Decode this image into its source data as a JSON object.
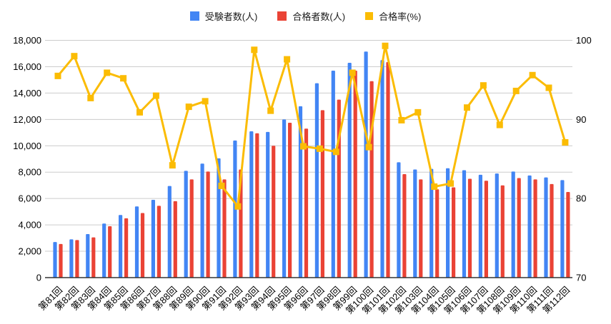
{
  "chart_data": {
    "type": "combo",
    "title": "",
    "grid": true,
    "legend_position": "top",
    "categories": [
      "第81回",
      "第82回",
      "第83回",
      "第84回",
      "第85回",
      "第86回",
      "第87回",
      "第88回",
      "第89回",
      "第90回",
      "第91回",
      "第92回",
      "第93回",
      "第94回",
      "第95回",
      "第96回",
      "第97回",
      "第98回",
      "第99回",
      "第100回",
      "第101回",
      "第102回",
      "第103回",
      "第104回",
      "第105回",
      "第106回",
      "第107回",
      "第108回",
      "第109回",
      "第110回",
      "第111回",
      "第112回"
    ],
    "series": [
      {
        "name": "受験者数(人)",
        "type": "bar",
        "axis": "left",
        "color": "#4285F4",
        "values": [
          2700,
          2900,
          3300,
          4100,
          4750,
          5400,
          5900,
          6950,
          8100,
          8650,
          9050,
          10400,
          11100,
          11050,
          12000,
          13000,
          14750,
          15700,
          16300,
          17150,
          16500,
          8750,
          8200,
          8250,
          8300,
          8150,
          7800,
          7900,
          8050,
          7750,
          7600,
          7400
        ]
      },
      {
        "name": "合格者数(人)",
        "type": "bar",
        "axis": "left",
        "color": "#EA4335",
        "values": [
          2550,
          2850,
          3050,
          3900,
          4500,
          4900,
          5450,
          5800,
          7450,
          8050,
          7450,
          8200,
          10950,
          10000,
          11750,
          11300,
          12700,
          13500,
          15700,
          14900,
          16350,
          7850,
          7450,
          6700,
          6850,
          7500,
          7350,
          7000,
          7550,
          7450,
          7100,
          6500
        ]
      },
      {
        "name": "合格率(%)",
        "type": "line",
        "axis": "right",
        "color": "#FBBC04",
        "values": [
          95.5,
          98.0,
          92.7,
          95.9,
          95.2,
          90.9,
          93.0,
          84.2,
          91.6,
          92.3,
          81.6,
          79.0,
          98.8,
          91.1,
          97.6,
          86.6,
          86.3,
          85.9,
          95.9,
          86.5,
          99.3,
          89.9,
          90.9,
          81.5,
          81.9,
          91.5,
          94.3,
          89.3,
          93.6,
          95.6,
          94.0,
          87.1
        ]
      }
    ],
    "left_axis": {
      "min": 0,
      "max": 18000,
      "step": 2000,
      "tick_labels": [
        "0",
        "2,000",
        "4,000",
        "6,000",
        "8,000",
        "10,000",
        "12,000",
        "14,000",
        "16,000",
        "18,000"
      ]
    },
    "right_axis": {
      "min": 70,
      "max": 100,
      "tick_values": [
        70,
        80,
        90,
        100
      ],
      "tick_labels": [
        "70",
        "80",
        "90",
        "100"
      ]
    },
    "colors": {
      "gridline": "#cccccc",
      "axis_line": "#333333",
      "tick_text": "#000000"
    }
  }
}
